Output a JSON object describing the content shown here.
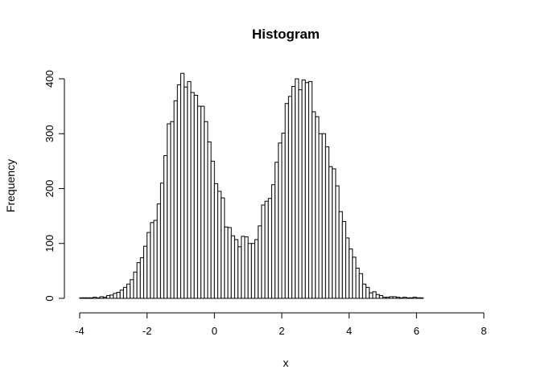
{
  "chart_data": {
    "type": "bar",
    "title": "Histogram",
    "xlabel": "x",
    "ylabel": "Frequency",
    "xlim": [
      -4,
      8.2
    ],
    "ylim": [
      0,
      410
    ],
    "x_ticks": [
      -4,
      -2,
      0,
      2,
      4,
      6,
      8
    ],
    "y_ticks": [
      0,
      100,
      200,
      300,
      400
    ],
    "bin_start": -4.0,
    "bin_width": 0.1,
    "values": [
      1,
      1,
      1,
      1,
      2,
      1,
      3,
      2,
      5,
      6,
      9,
      11,
      15,
      20,
      26,
      34,
      48,
      65,
      74,
      95,
      120,
      138,
      142,
      172,
      210,
      260,
      318,
      322,
      360,
      389,
      410,
      385,
      395,
      375,
      370,
      350,
      350,
      322,
      285,
      250,
      209,
      195,
      183,
      130,
      129,
      114,
      107,
      94,
      113,
      112,
      100,
      100,
      107,
      132,
      170,
      177,
      182,
      207,
      248,
      283,
      301,
      355,
      368,
      386,
      400,
      380,
      398,
      393,
      395,
      340,
      331,
      300,
      300,
      276,
      240,
      236,
      205,
      158,
      140,
      110,
      90,
      75,
      55,
      45,
      26,
      20,
      10,
      12,
      7,
      5,
      2,
      2,
      3,
      3,
      2,
      1,
      2,
      1,
      1,
      2,
      1,
      1
    ]
  }
}
